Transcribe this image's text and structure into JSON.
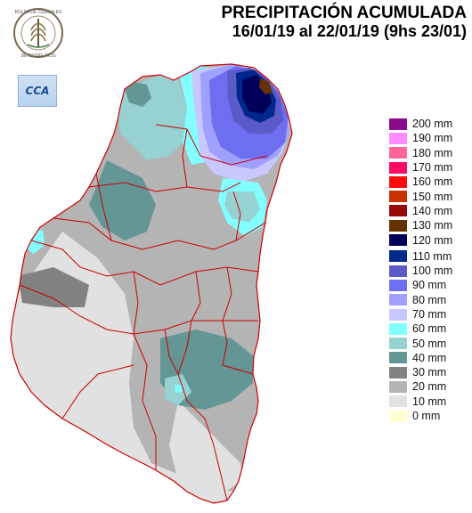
{
  "title": {
    "line1": "PRECIPITACIÓN ACUMULADA",
    "line2": "16/01/19 al 22/01/19 (9hs 23/01)"
  },
  "logos": {
    "seal": {
      "icon": "bolsa-de-cereales-seal",
      "text": "BOLSA DE CEREALES DE ENTRE RIOS"
    },
    "badge": {
      "icon": "cca-badge",
      "text": "CCA"
    }
  },
  "legend": [
    {
      "label": "200 mm",
      "color": "#8c0a8c"
    },
    {
      "label": "190 mm",
      "color": "#ff8cff"
    },
    {
      "label": "180 mm",
      "color": "#ff6496"
    },
    {
      "label": "170 mm",
      "color": "#ff0a64"
    },
    {
      "label": "160 mm",
      "color": "#ff0a0a"
    },
    {
      "label": "150 mm",
      "color": "#c83200"
    },
    {
      "label": "140 mm",
      "color": "#960a0a"
    },
    {
      "label": "130 mm",
      "color": "#643200"
    },
    {
      "label": "120 mm",
      "color": "#00005a"
    },
    {
      "label": "110 mm",
      "color": "#00288c"
    },
    {
      "label": "100 mm",
      "color": "#5a5ac8"
    },
    {
      "label": "90 mm",
      "color": "#6e6ef0"
    },
    {
      "label": "80 mm",
      "color": "#a0a0ff"
    },
    {
      "label": "70 mm",
      "color": "#c8c8ff"
    },
    {
      "label": "60 mm",
      "color": "#82ffff"
    },
    {
      "label": "50 mm",
      "color": "#96d2d2"
    },
    {
      "label": "40 mm",
      "color": "#649696"
    },
    {
      "label": "30 mm",
      "color": "#828282"
    },
    {
      "label": "20 mm",
      "color": "#b4b4b4"
    },
    {
      "label": "10 mm",
      "color": "#e1e1e1"
    },
    {
      "label": "0 mm",
      "color": "#ffffd2"
    }
  ],
  "map": {
    "province_fill": "#b4b4b4",
    "border_color": "#cc0000"
  }
}
